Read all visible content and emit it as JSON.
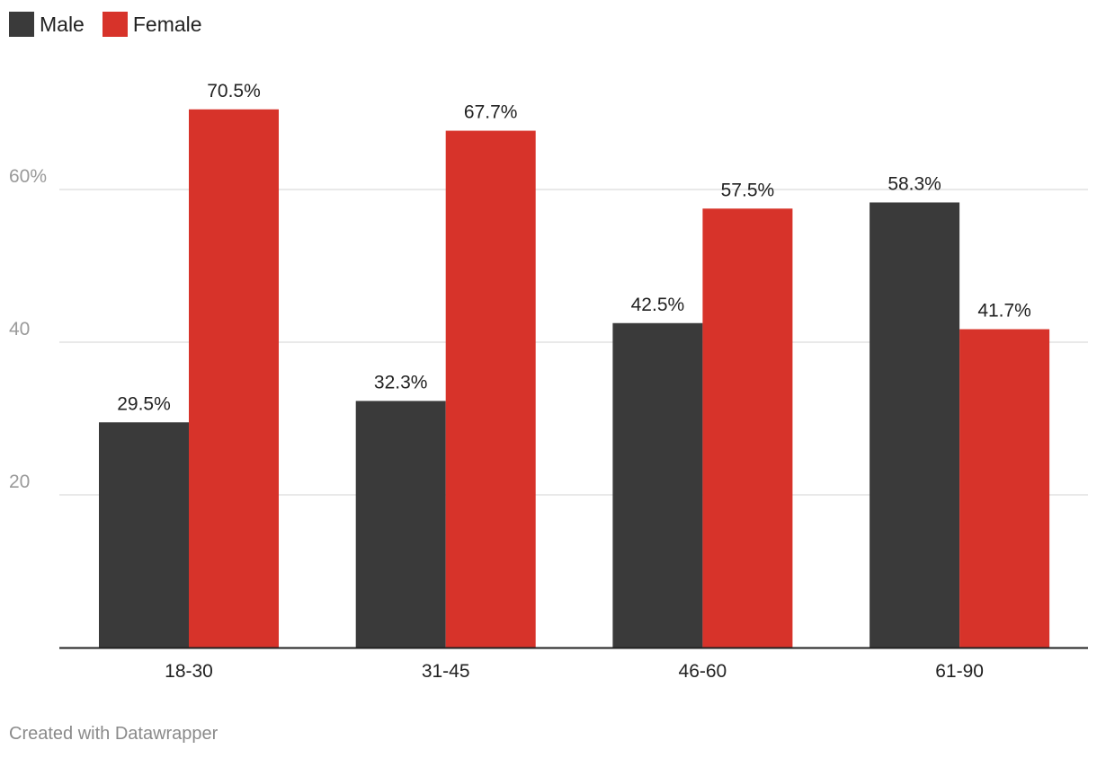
{
  "chart_data": {
    "type": "bar",
    "title": "",
    "xlabel": "",
    "ylabel": "",
    "categories": [
      "18-30",
      "31-45",
      "46-60",
      "61-90"
    ],
    "series": [
      {
        "name": "Male",
        "color": "#3a3a3a",
        "values": [
          29.5,
          32.3,
          42.5,
          58.3
        ],
        "labels": [
          "29.5%",
          "32.3%",
          "42.5%",
          "58.3%"
        ]
      },
      {
        "name": "Female",
        "color": "#d7332a",
        "values": [
          70.5,
          67.7,
          57.5,
          41.7
        ],
        "labels": [
          "70.5%",
          "67.7%",
          "57.5%",
          "41.7%"
        ]
      }
    ],
    "ylim": [
      0,
      80
    ],
    "yticks": [
      20,
      40,
      60
    ],
    "ytick_labels": [
      "20",
      "40",
      "60%"
    ],
    "grid": true,
    "legend_position": "top-left"
  },
  "footer": {
    "credit": "Created with Datawrapper"
  }
}
